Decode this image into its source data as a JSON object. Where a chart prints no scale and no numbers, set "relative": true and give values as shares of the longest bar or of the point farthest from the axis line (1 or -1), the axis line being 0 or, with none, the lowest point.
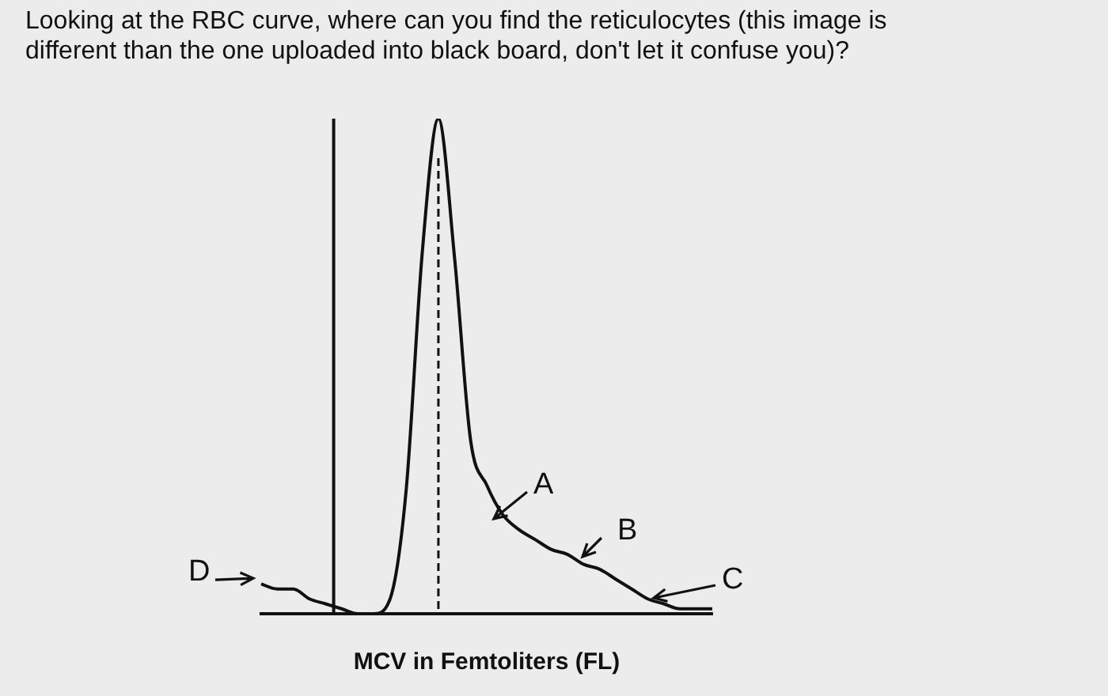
{
  "chart_data": {
    "type": "line",
    "relative": true,
    "title": "Looking at the RBC curve, where can you find the reticulocytes (this image is different than the one uploaded into black board, don't let it confuse you)?",
    "xlabel": "MCV in Femtoliters (FL)",
    "categories": [
      null,
      null,
      null,
      null,
      null,
      null,
      null,
      null,
      null,
      null,
      null,
      null,
      null,
      null,
      null,
      null,
      null,
      null,
      null,
      null,
      null,
      null,
      null,
      null,
      null,
      null,
      null,
      null,
      null
    ],
    "series": [
      {
        "color": "#111111",
        "values": [
          0.06,
          0.05,
          0.05,
          0.03,
          0.02,
          0.01,
          0.0,
          0.0,
          0.03,
          0.25,
          0.73,
          1.0,
          0.72,
          0.35,
          0.26,
          0.2,
          0.17,
          0.15,
          0.13,
          0.12,
          0.1,
          0.09,
          0.07,
          0.05,
          0.03,
          0.02,
          0.01,
          0.01,
          0.01
        ]
      }
    ],
    "annotations": [
      "D",
      "A",
      "B",
      "C"
    ],
    "marker": "none",
    "line_style": "solid",
    "legend": false,
    "grid": false
  }
}
